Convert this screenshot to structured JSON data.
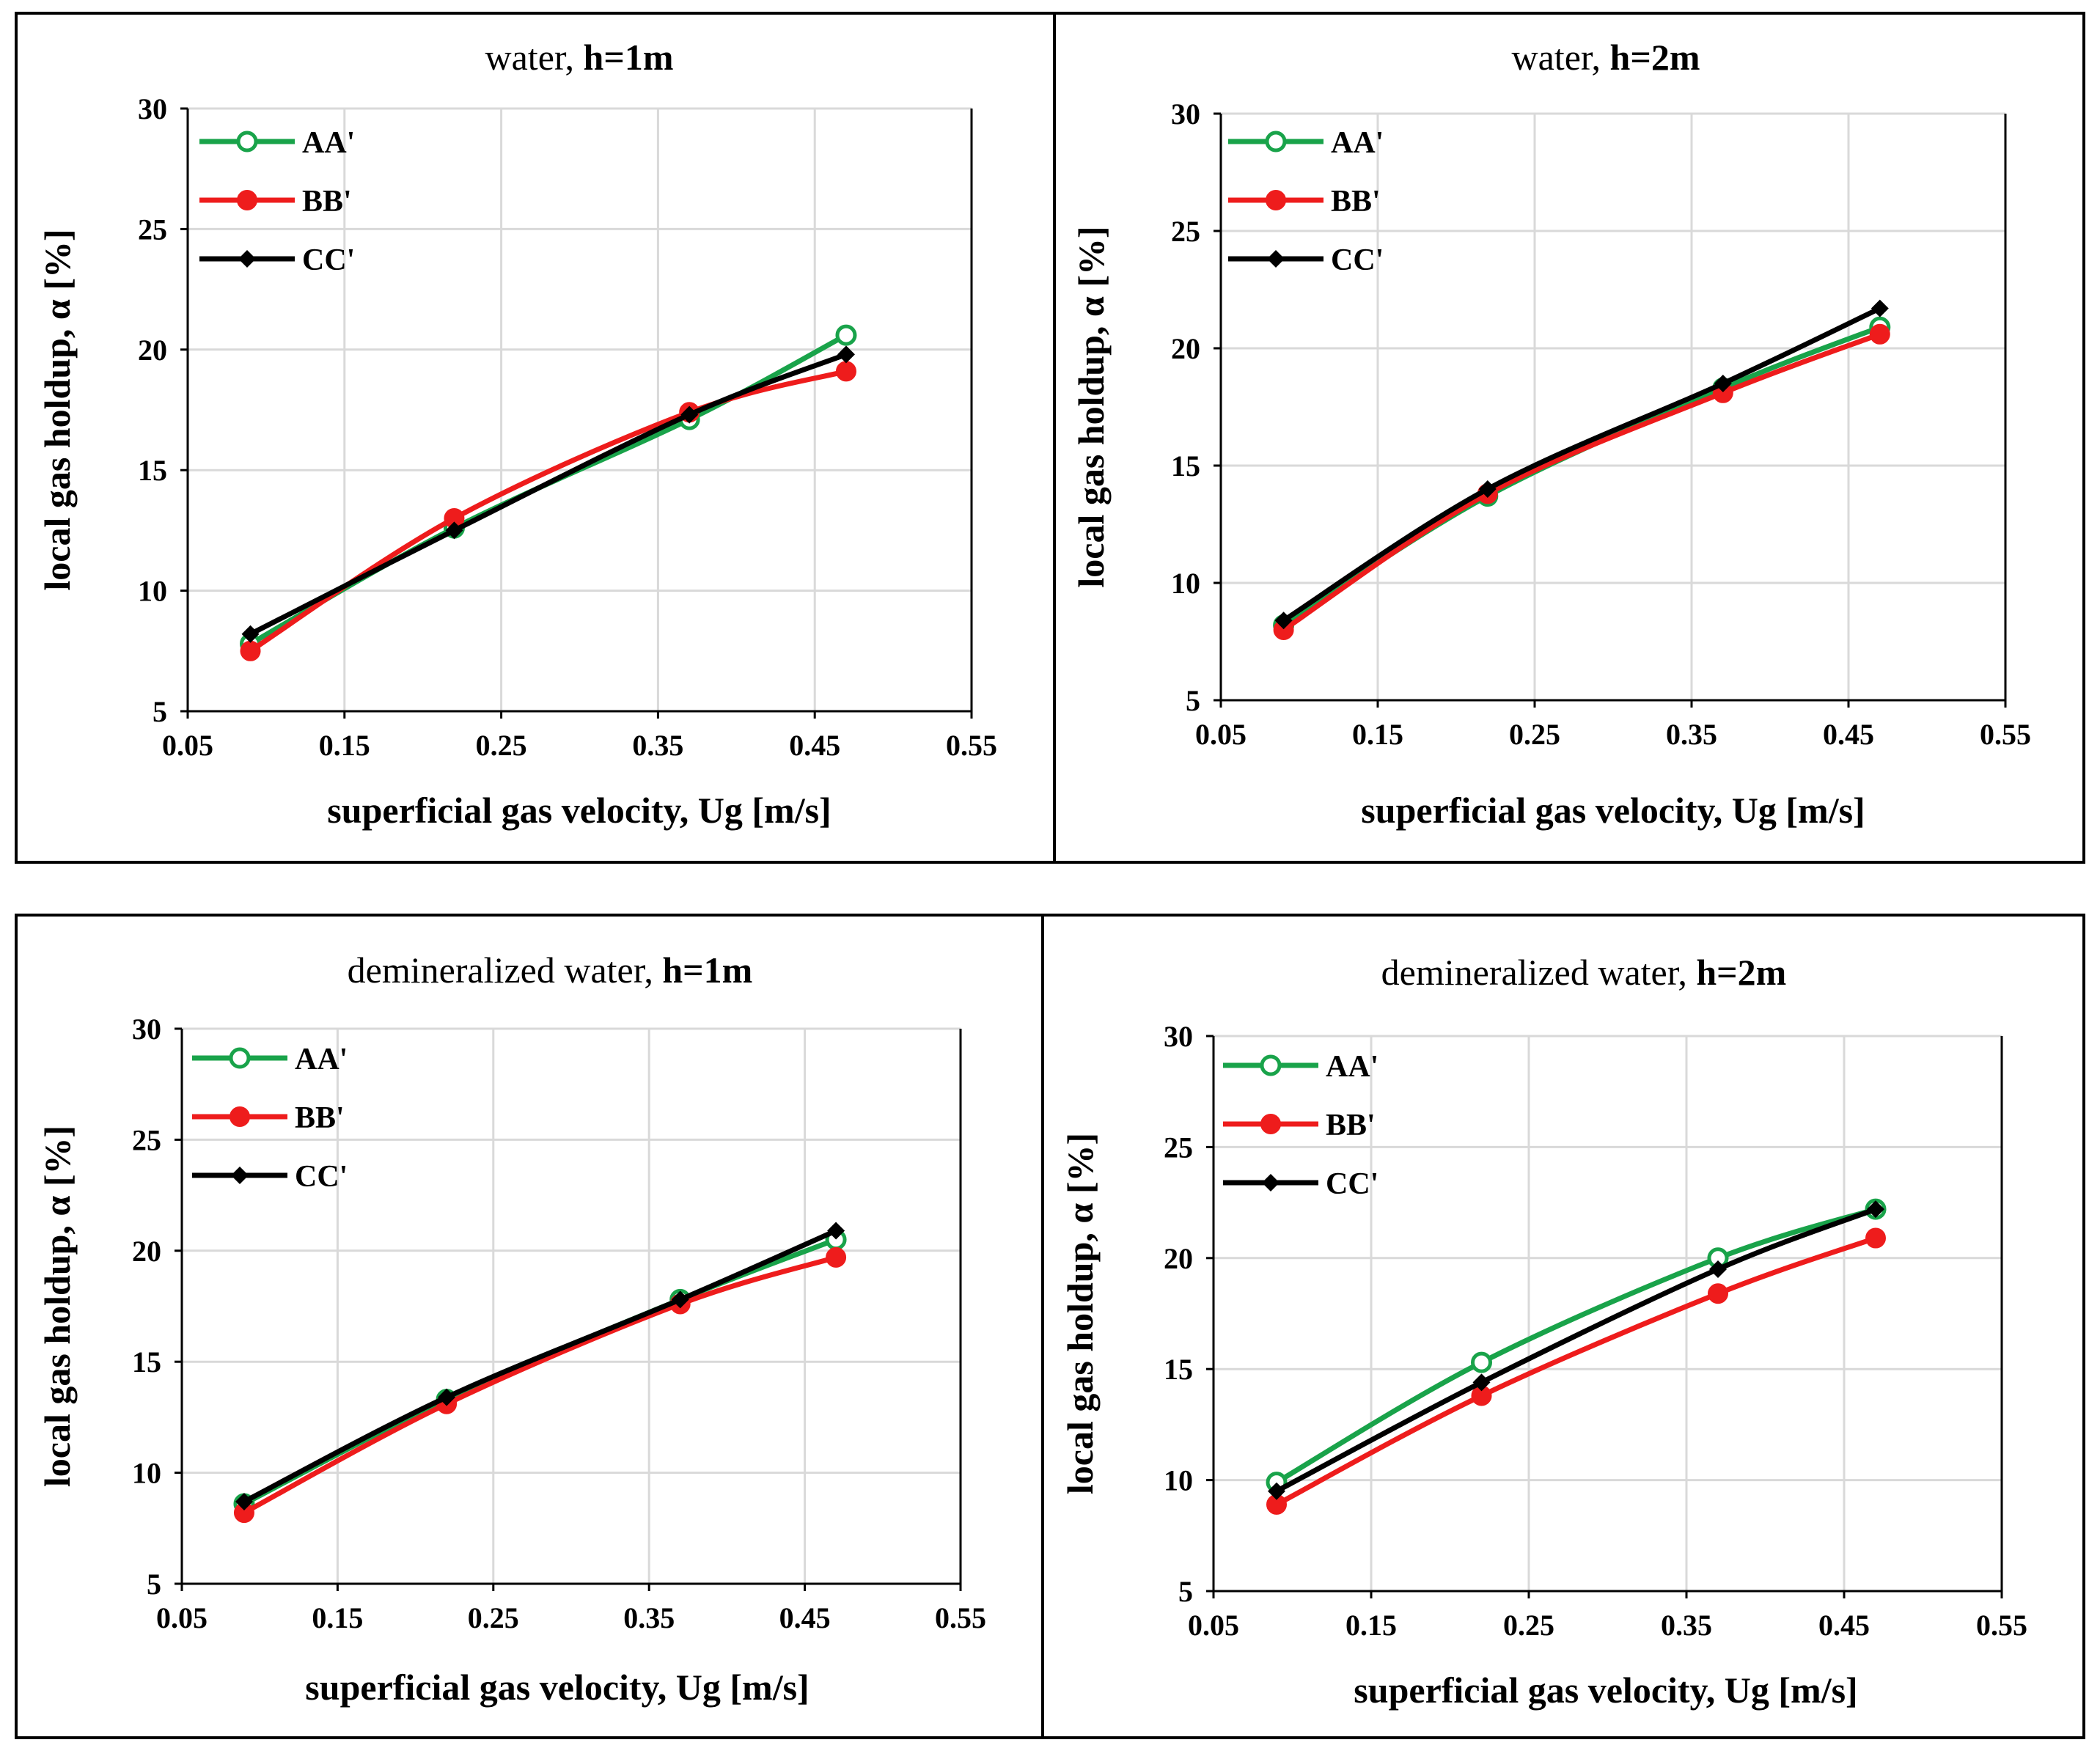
{
  "chart_data": [
    {
      "type": "line",
      "title_normal": "water, ",
      "title_bold": "h=1m",
      "xlabel": "superficial gas velocity, Ug [m/s]",
      "ylabel": "local gas holdup, α [%]",
      "xlim": [
        0.05,
        0.55
      ],
      "ylim": [
        5,
        30
      ],
      "xticks": [
        "0.05",
        "0.15",
        "0.25",
        "0.35",
        "0.45",
        "0.55"
      ],
      "yticks": [
        "5",
        "10",
        "15",
        "20",
        "25",
        "30"
      ],
      "grid": true,
      "legend_position": "top-left",
      "series": [
        {
          "name": "AA'",
          "color": "#19a34a",
          "marker": "open-circle",
          "x": [
            0.09,
            0.22,
            0.37,
            0.47
          ],
          "y": [
            7.8,
            12.6,
            17.1,
            20.6
          ]
        },
        {
          "name": "BB'",
          "color": "#ee1c1c",
          "marker": "filled-circle",
          "x": [
            0.09,
            0.22,
            0.37,
            0.47
          ],
          "y": [
            7.5,
            13.0,
            17.4,
            19.1
          ]
        },
        {
          "name": "CC'",
          "color": "#000000",
          "marker": "diamond",
          "x": [
            0.09,
            0.22,
            0.37,
            0.47
          ],
          "y": [
            8.2,
            12.5,
            17.3,
            19.8
          ]
        }
      ]
    },
    {
      "type": "line",
      "title_normal": "water, ",
      "title_bold": "h=2m",
      "xlabel": "superficial gas velocity, Ug [m/s]",
      "ylabel": "local gas holdup, α [%]",
      "xlim": [
        0.05,
        0.55
      ],
      "ylim": [
        5,
        30
      ],
      "xticks": [
        "0.05",
        "0.15",
        "0.25",
        "0.35",
        "0.45",
        "0.55"
      ],
      "yticks": [
        "5",
        "10",
        "15",
        "20",
        "25",
        "30"
      ],
      "grid": true,
      "legend_position": "top-left",
      "series": [
        {
          "name": "AA'",
          "color": "#19a34a",
          "marker": "open-circle",
          "x": [
            0.09,
            0.22,
            0.37,
            0.47
          ],
          "y": [
            8.2,
            13.7,
            18.3,
            20.9
          ]
        },
        {
          "name": "BB'",
          "color": "#ee1c1c",
          "marker": "filled-circle",
          "x": [
            0.09,
            0.22,
            0.37,
            0.47
          ],
          "y": [
            8.0,
            13.8,
            18.1,
            20.6
          ]
        },
        {
          "name": "CC'",
          "color": "#000000",
          "marker": "diamond",
          "x": [
            0.09,
            0.22,
            0.37,
            0.47
          ],
          "y": [
            8.4,
            14.0,
            18.5,
            21.7
          ]
        }
      ]
    },
    {
      "type": "line",
      "title_normal": "demineralized water, ",
      "title_bold": "h=1m",
      "xlabel": "superficial gas velocity, Ug [m/s]",
      "ylabel": "local gas holdup, α [%]",
      "xlim": [
        0.05,
        0.55
      ],
      "ylim": [
        5,
        30
      ],
      "xticks": [
        "0.05",
        "0.15",
        "0.25",
        "0.35",
        "0.45",
        "0.55"
      ],
      "yticks": [
        "5",
        "10",
        "15",
        "20",
        "25",
        "30"
      ],
      "grid": true,
      "legend_position": "top-left",
      "series": [
        {
          "name": "AA'",
          "color": "#19a34a",
          "marker": "open-circle",
          "x": [
            0.09,
            0.22,
            0.37,
            0.47
          ],
          "y": [
            8.6,
            13.3,
            17.8,
            20.5
          ]
        },
        {
          "name": "BB'",
          "color": "#ee1c1c",
          "marker": "filled-circle",
          "x": [
            0.09,
            0.22,
            0.37,
            0.47
          ],
          "y": [
            8.2,
            13.1,
            17.6,
            19.7
          ]
        },
        {
          "name": "CC'",
          "color": "#000000",
          "marker": "diamond",
          "x": [
            0.09,
            0.22,
            0.37,
            0.47
          ],
          "y": [
            8.7,
            13.4,
            17.8,
            20.9
          ]
        }
      ]
    },
    {
      "type": "line",
      "title_normal": "demineralized water, ",
      "title_bold": "h=2m",
      "xlabel": "superficial gas velocity, Ug [m/s]",
      "ylabel": "local gas holdup, α [%]",
      "xlim": [
        0.05,
        0.55
      ],
      "ylim": [
        5,
        30
      ],
      "xticks": [
        "0.05",
        "0.15",
        "0.25",
        "0.35",
        "0.45",
        "0.55"
      ],
      "yticks": [
        "5",
        "10",
        "15",
        "20",
        "25",
        "30"
      ],
      "grid": true,
      "legend_position": "top-left",
      "series": [
        {
          "name": "AA'",
          "color": "#19a34a",
          "marker": "open-circle",
          "x": [
            0.09,
            0.22,
            0.37,
            0.47
          ],
          "y": [
            9.9,
            15.3,
            20.0,
            22.2
          ]
        },
        {
          "name": "BB'",
          "color": "#ee1c1c",
          "marker": "filled-circle",
          "x": [
            0.09,
            0.22,
            0.37,
            0.47
          ],
          "y": [
            8.9,
            13.8,
            18.4,
            20.9
          ]
        },
        {
          "name": "CC'",
          "color": "#000000",
          "marker": "diamond",
          "x": [
            0.09,
            0.22,
            0.37,
            0.47
          ],
          "y": [
            9.5,
            14.4,
            19.5,
            22.2
          ]
        }
      ]
    }
  ]
}
